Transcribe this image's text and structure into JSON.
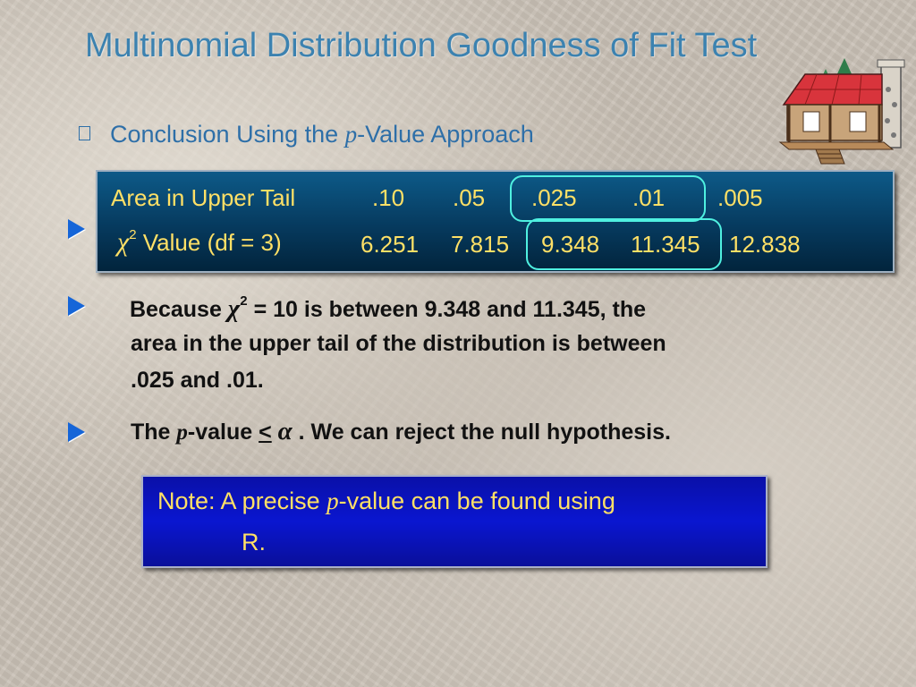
{
  "slide": {
    "title": "Multinomial Distribution Goodness of Fit Test",
    "subheading": {
      "before": "Conclusion Using the ",
      "italic": "p",
      "after": "-Value Approach"
    }
  },
  "table": {
    "row1_label": "Area in Upper Tail",
    "areas": [
      ".10",
      ".05",
      ".025",
      ".01",
      ".005"
    ],
    "row2_symbol": "χ",
    "row2_sup": "2",
    "row2_label": " Value (df = 3)",
    "values": [
      "6.251",
      "7.815",
      "9.348",
      "11.345",
      "12.838"
    ]
  },
  "bullets": {
    "b1_pre": "Because ",
    "b1_sym": "χ",
    "b1_sup": "2",
    "b1_rest": " = 10 is between 9.348 and 11.345, the",
    "b1_line2": "area in the upper tail of the distribution is between",
    "b1_line3": ".025 and .01.",
    "b2_pre": "The ",
    "b2_italic": "p",
    "b2_mid": "-value ",
    "b2_le": "<",
    "b2_alpha": "α",
    "b2_rest": " .  We can reject the null hypothesis."
  },
  "note": {
    "pre": "Note:  A precise ",
    "italic": "p",
    "post": "-value can be found using",
    "line2": "R."
  },
  "colors": {
    "title": "#3c82b0",
    "table_text": "#ffe066",
    "highlight": "#4ff0e0",
    "arrow": "#1565d8",
    "note_bg": "#0a16d0"
  },
  "icons": {
    "house": "cabin-clipart-icon",
    "bullet": "blue-triangle-arrow-icon",
    "square_bullet": "square-bullet-icon"
  }
}
